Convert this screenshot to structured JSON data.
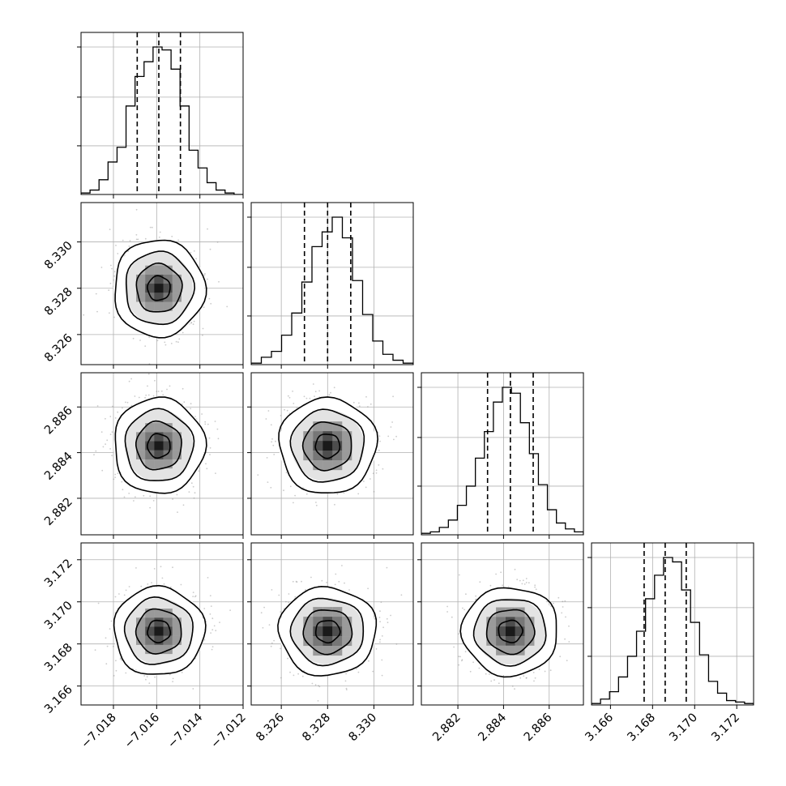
{
  "chart_data": {
    "type": "corner",
    "parameters": [
      {
        "index": 0,
        "range": [
          -7.0195,
          -7.012
        ],
        "ticks": [
          -7.018,
          -7.016,
          -7.014,
          -7.012
        ],
        "tick_labels": [
          "−7.018",
          "−7.016",
          "−7.014",
          "−7.012"
        ],
        "median": -7.0159,
        "q16": -7.0169,
        "q84": -7.0149,
        "sigma": 0.001,
        "hist_counts": [
          1,
          3,
          10,
          22,
          32,
          60,
          80,
          90,
          100,
          98,
          85,
          60,
          30,
          18,
          8,
          3,
          1,
          0
        ]
      },
      {
        "index": 1,
        "range": [
          8.3247,
          8.3317
        ],
        "ticks": [
          8.326,
          8.328,
          8.33
        ],
        "tick_labels": [
          "8.326",
          "8.328",
          "8.330"
        ],
        "median": 8.328,
        "q16": 8.327,
        "q84": 8.329,
        "sigma": 0.001,
        "hist_counts": [
          1,
          5,
          9,
          20,
          35,
          56,
          80,
          90,
          100,
          86,
          57,
          34,
          16,
          7,
          3,
          1
        ]
      },
      {
        "index": 2,
        "range": [
          2.8804,
          2.8875
        ],
        "ticks": [
          2.882,
          2.884,
          2.886
        ],
        "tick_labels": [
          "2.882",
          "2.884",
          "2.886"
        ],
        "median": 2.8843,
        "q16": 2.8833,
        "q84": 2.8853,
        "sigma": 0.001,
        "hist_counts": [
          1,
          2,
          5,
          10,
          20,
          33,
          52,
          70,
          90,
          100,
          96,
          76,
          55,
          34,
          17,
          8,
          4,
          2
        ]
      },
      {
        "index": 3,
        "range": [
          3.1651,
          3.1728
        ],
        "ticks": [
          3.166,
          3.168,
          3.17,
          3.172
        ],
        "tick_labels": [
          "3.166",
          "3.168",
          "3.170",
          "3.172"
        ],
        "median": 3.1686,
        "q16": 3.1676,
        "q84": 3.1696,
        "sigma": 0.001,
        "hist_counts": [
          1,
          4,
          9,
          19,
          33,
          50,
          72,
          88,
          100,
          97,
          78,
          56,
          34,
          16,
          8,
          3,
          2,
          1
        ]
      }
    ],
    "contour_levels_sigma": [
      0.5,
      1.0,
      1.5,
      2.0
    ],
    "grid": true,
    "xlabels": [],
    "ylabels": [],
    "title": ""
  }
}
